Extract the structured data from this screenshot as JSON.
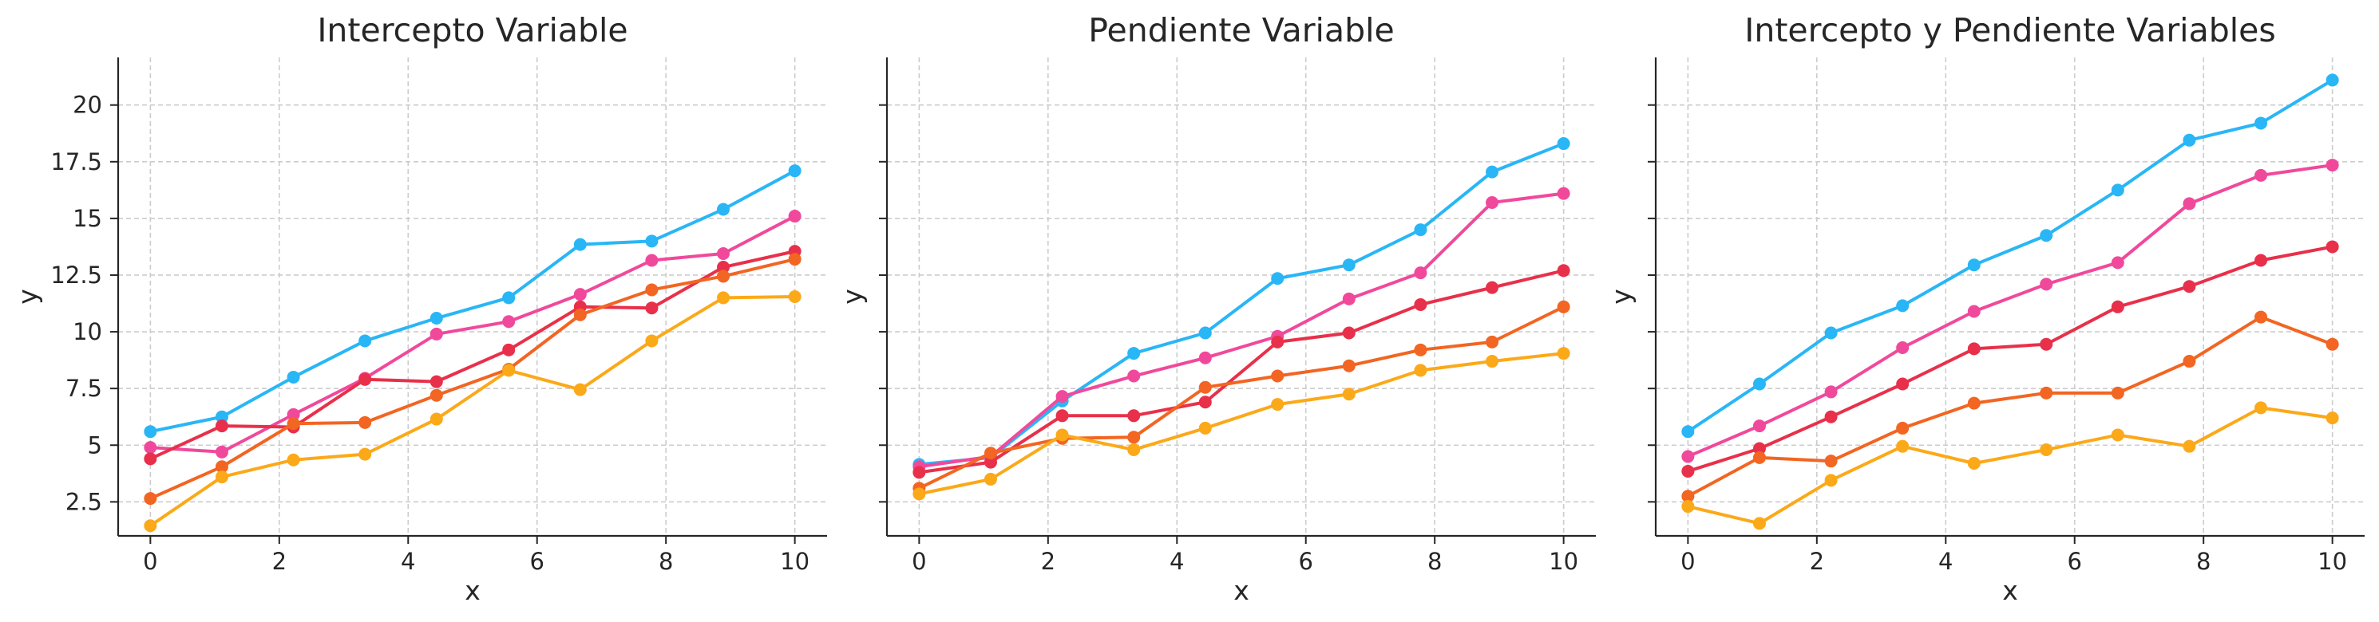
{
  "figure": {
    "background": "#ffffff",
    "grid_color": "#cccccc",
    "axis_color": "#262626"
  },
  "chart_data": [
    {
      "type": "line",
      "title": "Intercepto Variable",
      "xlabel": "x",
      "ylabel": "y",
      "xlim": [
        -0.5,
        10.5
      ],
      "ylim": [
        1.0,
        22.1
      ],
      "xticks": [
        0,
        2,
        4,
        6,
        8,
        10
      ],
      "yticks": [
        2.5,
        5.0,
        7.5,
        10.0,
        12.5,
        15.0,
        17.5,
        20.0
      ],
      "show_yticklabels": true,
      "grid": true,
      "x": [
        0,
        1.11,
        2.22,
        3.33,
        4.44,
        5.56,
        6.67,
        7.78,
        8.89,
        10
      ],
      "series": [
        {
          "color": "#29b6f6",
          "values": [
            5.6,
            6.25,
            8.0,
            9.6,
            10.6,
            11.5,
            13.85,
            14.0,
            15.4,
            17.1
          ]
        },
        {
          "color": "#f0499c",
          "values": [
            4.9,
            4.7,
            6.35,
            7.95,
            9.9,
            10.45,
            11.65,
            13.15,
            13.45,
            15.1
          ]
        },
        {
          "color": "#e8304a",
          "values": [
            4.4,
            5.85,
            5.8,
            7.9,
            7.8,
            9.2,
            11.1,
            11.05,
            12.85,
            13.55
          ]
        },
        {
          "color": "#f26522",
          "values": [
            2.65,
            4.05,
            5.95,
            6.0,
            7.2,
            8.35,
            10.75,
            11.85,
            12.45,
            13.2
          ]
        },
        {
          "color": "#fba919",
          "values": [
            1.45,
            3.6,
            4.35,
            4.6,
            6.15,
            8.3,
            7.45,
            9.6,
            11.5,
            11.55
          ]
        }
      ]
    },
    {
      "type": "line",
      "title": "Pendiente Variable",
      "xlabel": "x",
      "ylabel": "y",
      "xlim": [
        -0.5,
        10.5
      ],
      "ylim": [
        1.0,
        22.1
      ],
      "xticks": [
        0,
        2,
        4,
        6,
        8,
        10
      ],
      "yticks": [
        2.5,
        5.0,
        7.5,
        10.0,
        12.5,
        15.0,
        17.5,
        20.0
      ],
      "show_yticklabels": false,
      "grid": true,
      "x": [
        0,
        1.11,
        2.22,
        3.33,
        4.44,
        5.56,
        6.67,
        7.78,
        8.89,
        10
      ],
      "series": [
        {
          "color": "#29b6f6",
          "values": [
            4.15,
            4.45,
            6.95,
            9.05,
            9.95,
            12.35,
            12.95,
            14.5,
            17.05,
            18.3
          ]
        },
        {
          "color": "#f0499c",
          "values": [
            4.05,
            4.5,
            7.15,
            8.05,
            8.85,
            9.8,
            11.45,
            12.6,
            15.7,
            16.1
          ]
        },
        {
          "color": "#e8304a",
          "values": [
            3.8,
            4.25,
            6.3,
            6.3,
            6.9,
            9.55,
            9.95,
            11.2,
            11.95,
            12.7
          ]
        },
        {
          "color": "#f26522",
          "values": [
            3.1,
            4.65,
            5.3,
            5.35,
            7.55,
            8.05,
            8.5,
            9.2,
            9.55,
            11.1
          ]
        },
        {
          "color": "#fba919",
          "values": [
            2.85,
            3.5,
            5.45,
            4.8,
            5.75,
            6.8,
            7.25,
            8.3,
            8.7,
            9.05
          ]
        }
      ]
    },
    {
      "type": "line",
      "title": "Intercepto y Pendiente Variables",
      "xlabel": "x",
      "ylabel": "y",
      "xlim": [
        -0.5,
        10.5
      ],
      "ylim": [
        1.0,
        22.1
      ],
      "xticks": [
        0,
        2,
        4,
        6,
        8,
        10
      ],
      "yticks": [
        2.5,
        5.0,
        7.5,
        10.0,
        12.5,
        15.0,
        17.5,
        20.0
      ],
      "show_yticklabels": false,
      "grid": true,
      "x": [
        0,
        1.11,
        2.22,
        3.33,
        4.44,
        5.56,
        6.67,
        7.78,
        8.89,
        10
      ],
      "series": [
        {
          "color": "#29b6f6",
          "values": [
            5.6,
            7.7,
            9.95,
            11.15,
            12.95,
            14.25,
            16.25,
            18.45,
            19.2,
            21.1
          ]
        },
        {
          "color": "#f0499c",
          "values": [
            4.5,
            5.85,
            7.35,
            9.3,
            10.9,
            12.1,
            13.05,
            15.65,
            16.9,
            17.35
          ]
        },
        {
          "color": "#e8304a",
          "values": [
            3.85,
            4.85,
            6.25,
            7.7,
            9.25,
            9.45,
            11.1,
            12.0,
            13.15,
            13.75
          ]
        },
        {
          "color": "#f26522",
          "values": [
            2.75,
            4.45,
            4.3,
            5.75,
            6.85,
            7.3,
            7.3,
            8.7,
            10.65,
            9.45
          ]
        },
        {
          "color": "#fba919",
          "values": [
            2.3,
            1.55,
            3.45,
            4.95,
            4.2,
            4.8,
            5.45,
            4.95,
            6.65,
            6.2
          ]
        }
      ]
    }
  ]
}
